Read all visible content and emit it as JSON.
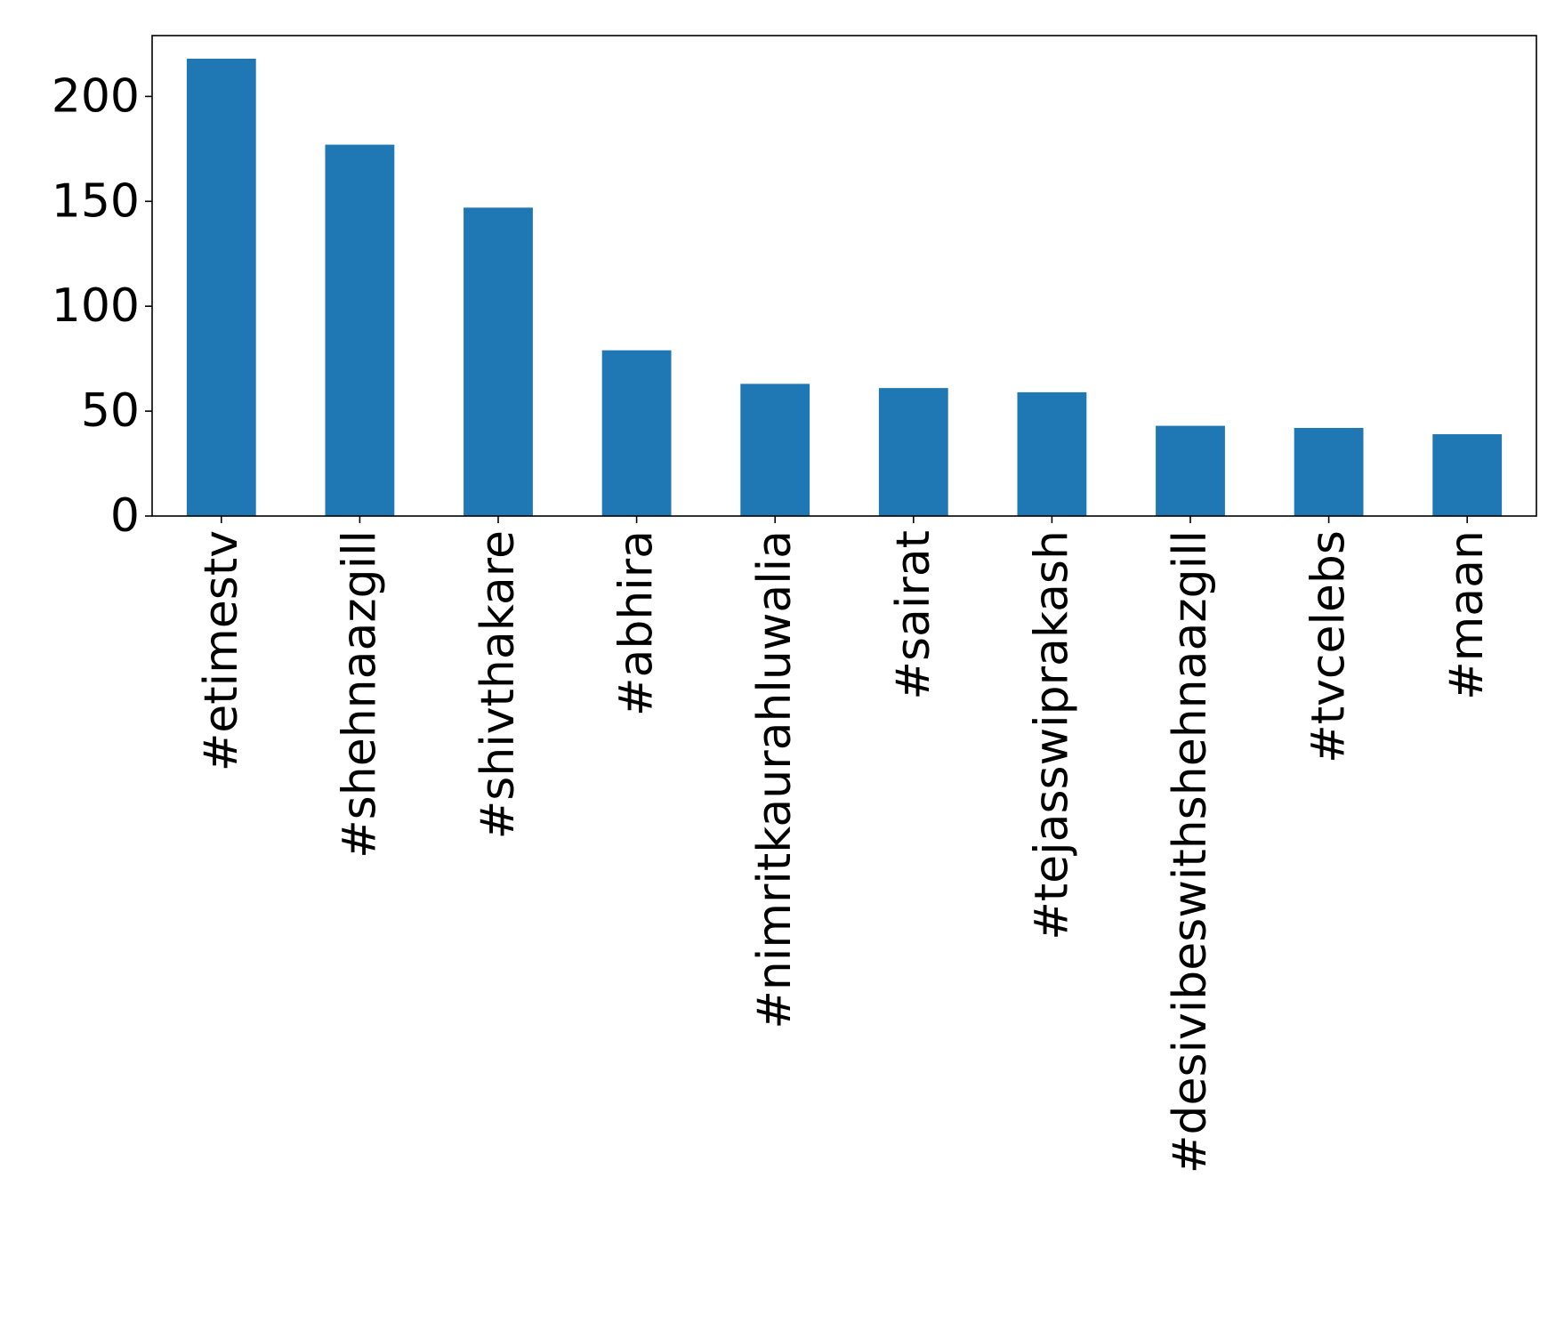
{
  "chart_data": {
    "type": "bar",
    "title": "",
    "xlabel": "",
    "ylabel": "",
    "categories": [
      "#etimestv",
      "#shehnaazgill",
      "#shivthakare",
      "#abhira",
      "#nimritkaurahluwalia",
      "#sairat",
      "#tejasswiprakash",
      "#desivibeswithshehnaazgill",
      "#tvcelebs",
      "#maan"
    ],
    "values": [
      218,
      177,
      147,
      79,
      63,
      61,
      59,
      43,
      42,
      39
    ],
    "ylim": [
      0,
      229
    ],
    "yticks": [
      0,
      50,
      100,
      150,
      200
    ],
    "grid": false,
    "legend": "none",
    "bar_color": "#1f77b4"
  }
}
